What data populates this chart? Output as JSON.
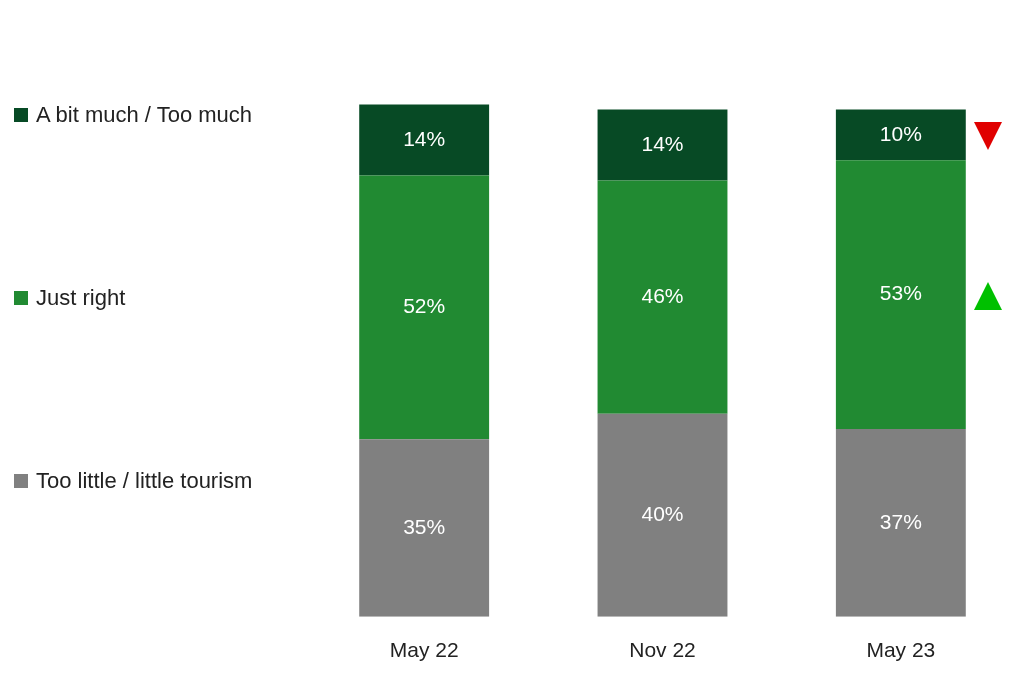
{
  "chart_data": {
    "type": "bar",
    "stacked": true,
    "legend": "left",
    "tick_labels": "x",
    "categories": [
      "May 22",
      "Nov 22",
      "May 23"
    ],
    "series": [
      {
        "name": "Too little / little tourism",
        "color": "#808080",
        "values": [
          35,
          40,
          37
        ],
        "value_labels": [
          "35%",
          "40%",
          "37%"
        ]
      },
      {
        "name": "Just right",
        "color": "#218a32",
        "values": [
          52,
          46,
          53
        ],
        "value_labels": [
          "52%",
          "46%",
          "53%"
        ]
      },
      {
        "name": "A bit much / Too much",
        "color": "#074a25",
        "values": [
          14,
          14,
          10
        ],
        "value_labels": [
          "14%",
          "14%",
          "10%"
        ]
      }
    ]
  }
}
